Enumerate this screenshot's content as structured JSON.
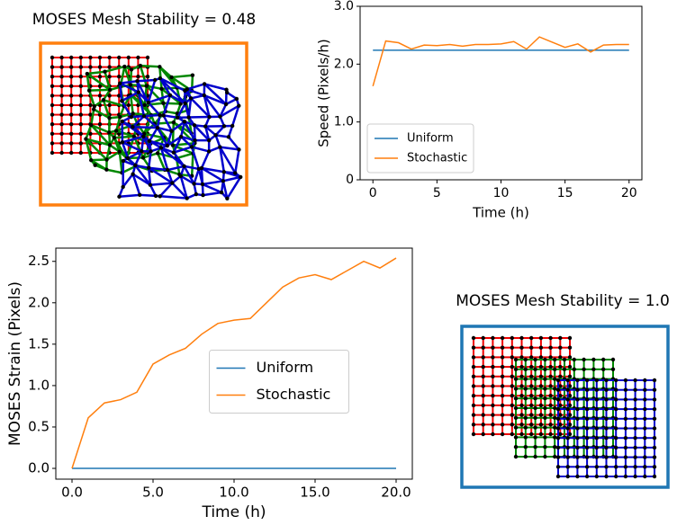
{
  "chart_data": [
    {
      "type": "line",
      "x_label": "Time (h)",
      "y_label": "Speed (Pixels/h)",
      "x": [
        0,
        1,
        2,
        3,
        4,
        5,
        6,
        7,
        8,
        9,
        10,
        11,
        12,
        13,
        14,
        15,
        16,
        17,
        18,
        19,
        20
      ],
      "series": [
        {
          "name": "Uniform",
          "color": "#1f77b4",
          "values": [
            2.24,
            2.24,
            2.24,
            2.24,
            2.24,
            2.24,
            2.24,
            2.24,
            2.24,
            2.24,
            2.24,
            2.24,
            2.24,
            2.24,
            2.24,
            2.24,
            2.24,
            2.24,
            2.24,
            2.24,
            2.24
          ]
        },
        {
          "name": "Stochastic",
          "color": "#ff7f0e",
          "values": [
            1.62,
            2.4,
            2.37,
            2.26,
            2.33,
            2.32,
            2.34,
            2.31,
            2.34,
            2.34,
            2.35,
            2.39,
            2.26,
            2.47,
            2.38,
            2.29,
            2.35,
            2.21,
            2.33,
            2.34,
            2.34
          ]
        }
      ],
      "xlim": [
        -1,
        21
      ],
      "xticks": [
        0,
        5,
        10,
        15,
        20
      ],
      "ylim": [
        0,
        3
      ],
      "yticks": [
        0,
        {
          "value": 1,
          "label": "1.0"
        },
        {
          "value": 2,
          "label": "2.0"
        },
        {
          "value": 3,
          "label": "3.0"
        }
      ],
      "legend": "lower left"
    },
    {
      "type": "line",
      "x_label": "Time (h)",
      "y_label": "MOSES Strain (Pixels)",
      "x": [
        0,
        1,
        2,
        3,
        4,
        5,
        6,
        7,
        8,
        9,
        10,
        11,
        12,
        13,
        14,
        15,
        16,
        17,
        18,
        19,
        20
      ],
      "series": [
        {
          "name": "Uniform",
          "color": "#1f77b4",
          "values": [
            0,
            0,
            0,
            0,
            0,
            0,
            0,
            0,
            0,
            0,
            0,
            0,
            0,
            0,
            0,
            0,
            0,
            0,
            0,
            0,
            0
          ]
        },
        {
          "name": "Stochastic",
          "color": "#ff7f0e",
          "values": [
            0,
            0.61,
            0.79,
            0.83,
            0.92,
            1.26,
            1.37,
            1.45,
            1.62,
            1.75,
            1.79,
            1.81,
            2.0,
            2.19,
            2.3,
            2.34,
            2.28,
            2.39,
            2.5,
            2.42,
            2.54
          ]
        }
      ],
      "xlim": [
        -1,
        21
      ],
      "xticks": [
        {
          "value": 0,
          "label": "0.0"
        },
        {
          "value": 5,
          "label": "5.0"
        },
        {
          "value": 10,
          "label": "10.0"
        },
        {
          "value": 15,
          "label": "15.0"
        },
        {
          "value": 20,
          "label": "20.0"
        }
      ],
      "ylim": [
        -0.13,
        2.66
      ],
      "yticks": [
        {
          "value": 0,
          "label": "0.0"
        },
        0.5,
        {
          "value": 1,
          "label": "1.0"
        },
        1.5,
        {
          "value": 2,
          "label": "2.0"
        },
        2.5
      ],
      "legend": "center"
    }
  ],
  "mesh_panels": [
    {
      "title": "MOSES Mesh Stability = 0.48",
      "frame_color": "#ff7f0e"
    },
    {
      "title": "MOSES Mesh Stability = 1.0",
      "frame_color": "#1f77b4"
    }
  ]
}
